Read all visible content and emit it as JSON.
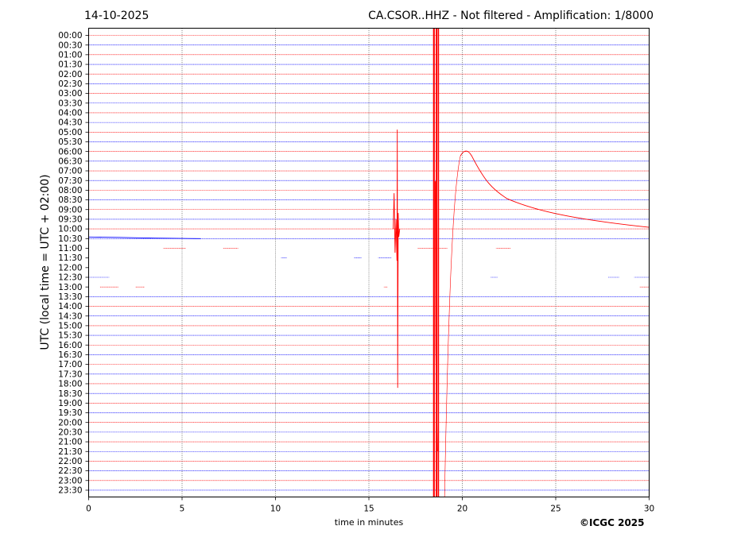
{
  "header": {
    "date": "14-10-2025",
    "title": "CA.CSOR..HHZ - Not filtered - Amplification: 1/8000"
  },
  "footer": {
    "copyright": "©ICGC 2025"
  },
  "chart_data": {
    "type": "line",
    "title": "CA.CSOR..HHZ - Not filtered - Amplification: 1/8000",
    "xlabel": "time in minutes",
    "ylabel": "UTC (local time = UTC + 02:00)",
    "xlim": [
      0,
      30
    ],
    "x_ticks": [
      0,
      5,
      10,
      15,
      20,
      25,
      30
    ],
    "y_ticks": [
      "00:00",
      "00:30",
      "01:00",
      "01:30",
      "02:00",
      "02:30",
      "03:00",
      "03:30",
      "04:00",
      "04:30",
      "05:00",
      "05:30",
      "06:00",
      "06:30",
      "07:00",
      "07:30",
      "08:00",
      "08:30",
      "09:00",
      "09:30",
      "10:00",
      "10:30",
      "11:00",
      "11:30",
      "12:00",
      "12:30",
      "13:00",
      "13:30",
      "14:00",
      "14:30",
      "15:00",
      "15:30",
      "16:00",
      "16:30",
      "17:00",
      "17:30",
      "18:00",
      "18:30",
      "19:00",
      "19:30",
      "20:00",
      "20:30",
      "21:00",
      "21:30",
      "22:00",
      "22:30",
      "23:00",
      "23:30"
    ],
    "trace_colors": [
      "#ff0000",
      "#0000ff"
    ],
    "grid": "vertical-dotted",
    "events": [
      {
        "trace": "10:00",
        "x_start": 16.3,
        "x_end": 16.6,
        "description": "spike"
      },
      {
        "trace": "10:00",
        "x_start": 18.4,
        "x_end": 18.8,
        "description": "large saturated spike"
      },
      {
        "trace": "10:00",
        "x_start": 19.0,
        "x_end": 30,
        "description": "slow swing peaking near 20.2 min then decaying"
      }
    ]
  }
}
